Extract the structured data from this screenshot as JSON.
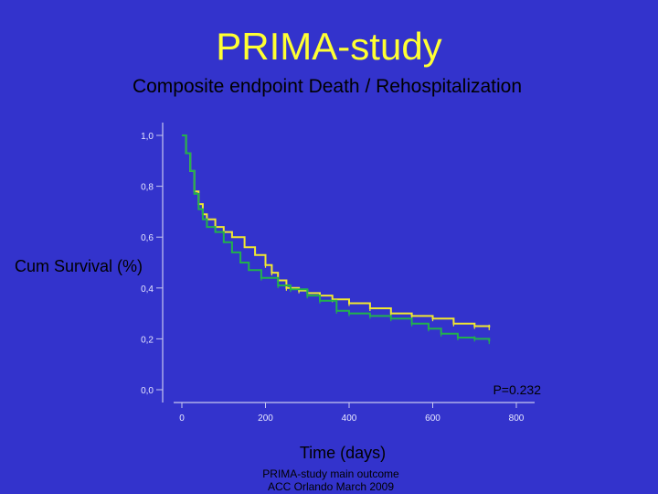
{
  "title": "PRIMA-study",
  "subtitle": "Composite endpoint Death / Rehospitalization",
  "footnote": [
    "PRIMA-study main outcome",
    "ACC Orlando March 2009"
  ],
  "colors": {
    "background": "#3333cc",
    "title": "#ffff33",
    "series_yellow": "#f2e830",
    "series_green": "#22b14c"
  },
  "chart_data": {
    "type": "line",
    "xlabel": "Time (days)",
    "ylabel": "Cum Survival (%)",
    "xlim": [
      0,
      800
    ],
    "ylim": [
      0,
      1
    ],
    "x_ticks": [
      "0",
      "200",
      "400",
      "600",
      "800"
    ],
    "y_ticks": [
      "0,0",
      "0,2",
      "0,4",
      "0,6",
      "0,8",
      "1,0"
    ],
    "annotation": "P=0.232",
    "grid": false,
    "series": [
      {
        "color": "#f2e830",
        "points": [
          [
            0,
            1.0
          ],
          [
            10,
            0.93
          ],
          [
            20,
            0.86
          ],
          [
            30,
            0.78
          ],
          [
            40,
            0.73
          ],
          [
            50,
            0.69
          ],
          [
            60,
            0.67
          ],
          [
            80,
            0.64
          ],
          [
            100,
            0.62
          ],
          [
            120,
            0.6
          ],
          [
            150,
            0.56
          ],
          [
            175,
            0.53
          ],
          [
            200,
            0.49
          ],
          [
            215,
            0.46
          ],
          [
            230,
            0.43
          ],
          [
            250,
            0.4
          ],
          [
            280,
            0.39
          ],
          [
            300,
            0.38
          ],
          [
            330,
            0.37
          ],
          [
            360,
            0.355
          ],
          [
            400,
            0.34
          ],
          [
            450,
            0.32
          ],
          [
            500,
            0.3
          ],
          [
            550,
            0.29
          ],
          [
            600,
            0.28
          ],
          [
            650,
            0.26
          ],
          [
            700,
            0.25
          ],
          [
            735,
            0.245
          ]
        ]
      },
      {
        "color": "#22b14c",
        "points": [
          [
            0,
            1.0
          ],
          [
            10,
            0.93
          ],
          [
            20,
            0.86
          ],
          [
            30,
            0.77
          ],
          [
            40,
            0.71
          ],
          [
            50,
            0.67
          ],
          [
            60,
            0.64
          ],
          [
            80,
            0.62
          ],
          [
            100,
            0.58
          ],
          [
            120,
            0.54
          ],
          [
            140,
            0.5
          ],
          [
            160,
            0.47
          ],
          [
            190,
            0.44
          ],
          [
            230,
            0.41
          ],
          [
            260,
            0.395
          ],
          [
            300,
            0.37
          ],
          [
            330,
            0.35
          ],
          [
            370,
            0.31
          ],
          [
            400,
            0.3
          ],
          [
            450,
            0.29
          ],
          [
            500,
            0.28
          ],
          [
            550,
            0.26
          ],
          [
            590,
            0.24
          ],
          [
            620,
            0.22
          ],
          [
            660,
            0.205
          ],
          [
            700,
            0.2
          ],
          [
            735,
            0.19
          ]
        ]
      }
    ]
  }
}
